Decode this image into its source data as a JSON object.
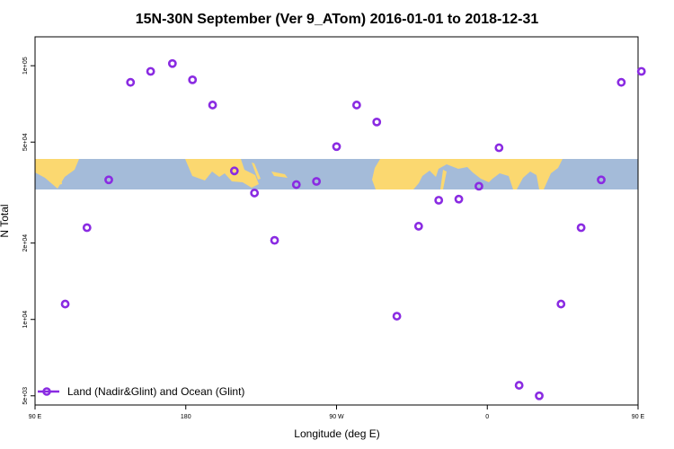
{
  "colors": {
    "marker": "#8a2be2",
    "ocean": "#a4bbd9",
    "land": "#fbd870",
    "frame": "#000000",
    "background": "#ffffff"
  },
  "chart_data": {
    "type": "scatter",
    "title": "15N-30N September (Ver 9_ATom)   2016-01-01 to 2018-12-31",
    "xlabel": "Longitude (deg E)",
    "ylabel": "N Total",
    "x_axis": {
      "range": [
        90,
        450
      ],
      "ticks": [
        90,
        180,
        270,
        360,
        450
      ],
      "tick_labels": [
        "90 E",
        "180",
        "90 W",
        "0",
        "90 E"
      ]
    },
    "y_axis": {
      "scale": "log",
      "range": [
        4600,
        130000
      ],
      "ticks": [
        5000,
        10000,
        20000,
        50000,
        100000
      ],
      "tick_labels": [
        "5e+03",
        "1e+04",
        "2e+04",
        "5e+04",
        "1e+05"
      ]
    },
    "legend": {
      "position": "bottom-left",
      "label": "Land (Nadir&Glint) and Ocean (Glint)"
    },
    "map_strip": {
      "latitude_band": "15N-30N"
    },
    "series": [
      {
        "name": "Land (Nadir&Glint) and Ocean (Glint)",
        "x": [
          108,
          121,
          134,
          147,
          159,
          172,
          184,
          196,
          209,
          221,
          233,
          246,
          258,
          270,
          282,
          294,
          306,
          319,
          331,
          343,
          355,
          367,
          379,
          391,
          404,
          416,
          428,
          440,
          452
        ],
        "y": [
          11500,
          23000,
          35500,
          86000,
          95000,
          102000,
          88000,
          70000,
          38500,
          31500,
          20500,
          34000,
          35000,
          48000,
          70000,
          60000,
          10300,
          23300,
          29500,
          29800,
          33500,
          47500,
          5500,
          5000,
          11500,
          23000,
          35500,
          86000,
          95000
        ]
      }
    ]
  }
}
